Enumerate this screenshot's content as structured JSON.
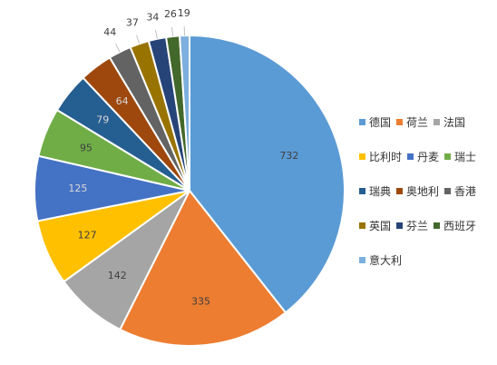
{
  "chart_data": {
    "type": "pie",
    "title": "",
    "categories": [
      "德国",
      "荷兰",
      "法国",
      "比利时",
      "丹麦",
      "瑞士",
      "瑞典",
      "奥地利",
      "香港",
      "英国",
      "芬兰",
      "西班牙",
      "意大利"
    ],
    "values": [
      732,
      335,
      142,
      127,
      125,
      95,
      79,
      64,
      44,
      37,
      34,
      26,
      19
    ],
    "labels": [
      "732",
      "335",
      "142",
      "127",
      "125",
      "95",
      "79",
      "64",
      "44",
      "37",
      "34",
      "26",
      "19"
    ],
    "colors": [
      "#5B9BD5",
      "#ED7D31",
      "#A5A5A5",
      "#FFC000",
      "#4472C4",
      "#70AD47",
      "#255E91",
      "#9E480E",
      "#636363",
      "#997300",
      "#264478",
      "#43682B",
      "#7CAFDD"
    ],
    "legend_position": "right"
  }
}
